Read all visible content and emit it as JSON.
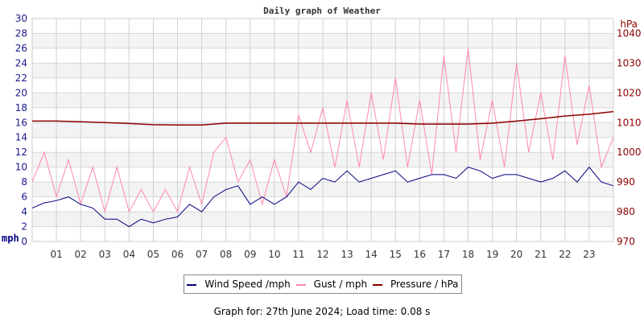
{
  "chart_data": {
    "type": "line",
    "title": "Daily graph of Weather",
    "ylabel": "mph",
    "y2label": "hPa",
    "ylim": [
      0,
      30
    ],
    "y2lim": [
      970,
      1045
    ],
    "yticks": [
      0,
      2,
      4,
      6,
      8,
      10,
      12,
      14,
      16,
      18,
      20,
      22,
      24,
      26,
      28,
      30
    ],
    "y2ticks": [
      970,
      980,
      990,
      1000,
      1010,
      1020,
      1030,
      1040
    ],
    "xlim": [
      0,
      24
    ],
    "xtick_labels": [
      "01",
      "02",
      "03",
      "04",
      "05",
      "06",
      "07",
      "08",
      "09",
      "10",
      "11",
      "12",
      "13",
      "14",
      "15",
      "16",
      "17",
      "18",
      "19",
      "20",
      "21",
      "22",
      "23"
    ],
    "grid": true,
    "legend_placement": "bottom",
    "series": [
      {
        "name": "Wind Speed /mph",
        "color": "#000080",
        "axis": "left",
        "x": [
          0,
          0.5,
          1,
          1.5,
          2,
          2.5,
          3,
          3.5,
          4,
          4.5,
          5,
          5.5,
          6,
          6.5,
          7,
          7.5,
          8,
          8.5,
          9,
          9.5,
          10,
          10.5,
          11,
          11.5,
          12,
          12.5,
          13,
          13.5,
          14,
          14.5,
          15,
          15.5,
          16,
          16.5,
          17,
          17.5,
          18,
          18.5,
          19,
          19.5,
          20,
          20.5,
          21,
          21.5,
          22,
          22.5,
          23,
          23.5,
          24
        ],
        "values": [
          4.5,
          5.2,
          5.5,
          6,
          5,
          4.5,
          3,
          3,
          2,
          3,
          2.5,
          3,
          3.3,
          5,
          4,
          6,
          7,
          7.5,
          5,
          6,
          5,
          6,
          8,
          7,
          8.5,
          8,
          9.5,
          8,
          8.5,
          9,
          9.5,
          8,
          8.5,
          9,
          9,
          8.5,
          10,
          9.5,
          8.5,
          9,
          9,
          8.5,
          8,
          8.5,
          9.5,
          8,
          10,
          8,
          7.5
        ]
      },
      {
        "name": "Gust / mph",
        "color": "#ff88aa",
        "axis": "left",
        "x": [
          0,
          0.5,
          1,
          1.5,
          2,
          2.5,
          3,
          3.5,
          4,
          4.5,
          5,
          5.5,
          6,
          6.5,
          7,
          7.5,
          8,
          8.5,
          9,
          9.5,
          10,
          10.5,
          11,
          11.5,
          12,
          12.5,
          13,
          13.5,
          14,
          14.5,
          15,
          15.5,
          16,
          16.5,
          17,
          17.5,
          18,
          18.5,
          19,
          19.5,
          20,
          20.5,
          21,
          21.5,
          22,
          22.5,
          23,
          23.5,
          24
        ],
        "values": [
          8,
          12,
          6,
          11,
          5,
          10,
          4,
          10,
          4,
          7,
          4,
          7,
          4,
          10,
          5,
          12,
          14,
          8,
          11,
          5,
          11,
          6,
          17,
          12,
          18,
          10,
          19,
          10,
          20,
          11,
          22,
          10,
          19,
          9,
          25,
          12,
          26,
          11,
          19,
          10,
          24,
          12,
          20,
          11,
          25,
          13,
          21,
          10,
          14
        ]
      },
      {
        "name": "Pressure / hPa",
        "color": "#8b0000",
        "axis": "right",
        "x": [
          0,
          1,
          2,
          3,
          4,
          5,
          6,
          7,
          8,
          9,
          10,
          11,
          12,
          13,
          14,
          15,
          16,
          17,
          18,
          19,
          20,
          21,
          22,
          23,
          24
        ],
        "values": [
          1010.5,
          1010.5,
          1010.3,
          1010,
          1009.7,
          1009.3,
          1009.2,
          1009.2,
          1009.8,
          1009.8,
          1009.8,
          1009.8,
          1009.8,
          1009.8,
          1009.8,
          1009.8,
          1009.5,
          1009.5,
          1009.5,
          1009.8,
          1010.5,
          1011.3,
          1012.2,
          1012.8,
          1013.7
        ]
      }
    ]
  },
  "footer": "Graph for: 27th June 2024; Load time: 0.08 s"
}
